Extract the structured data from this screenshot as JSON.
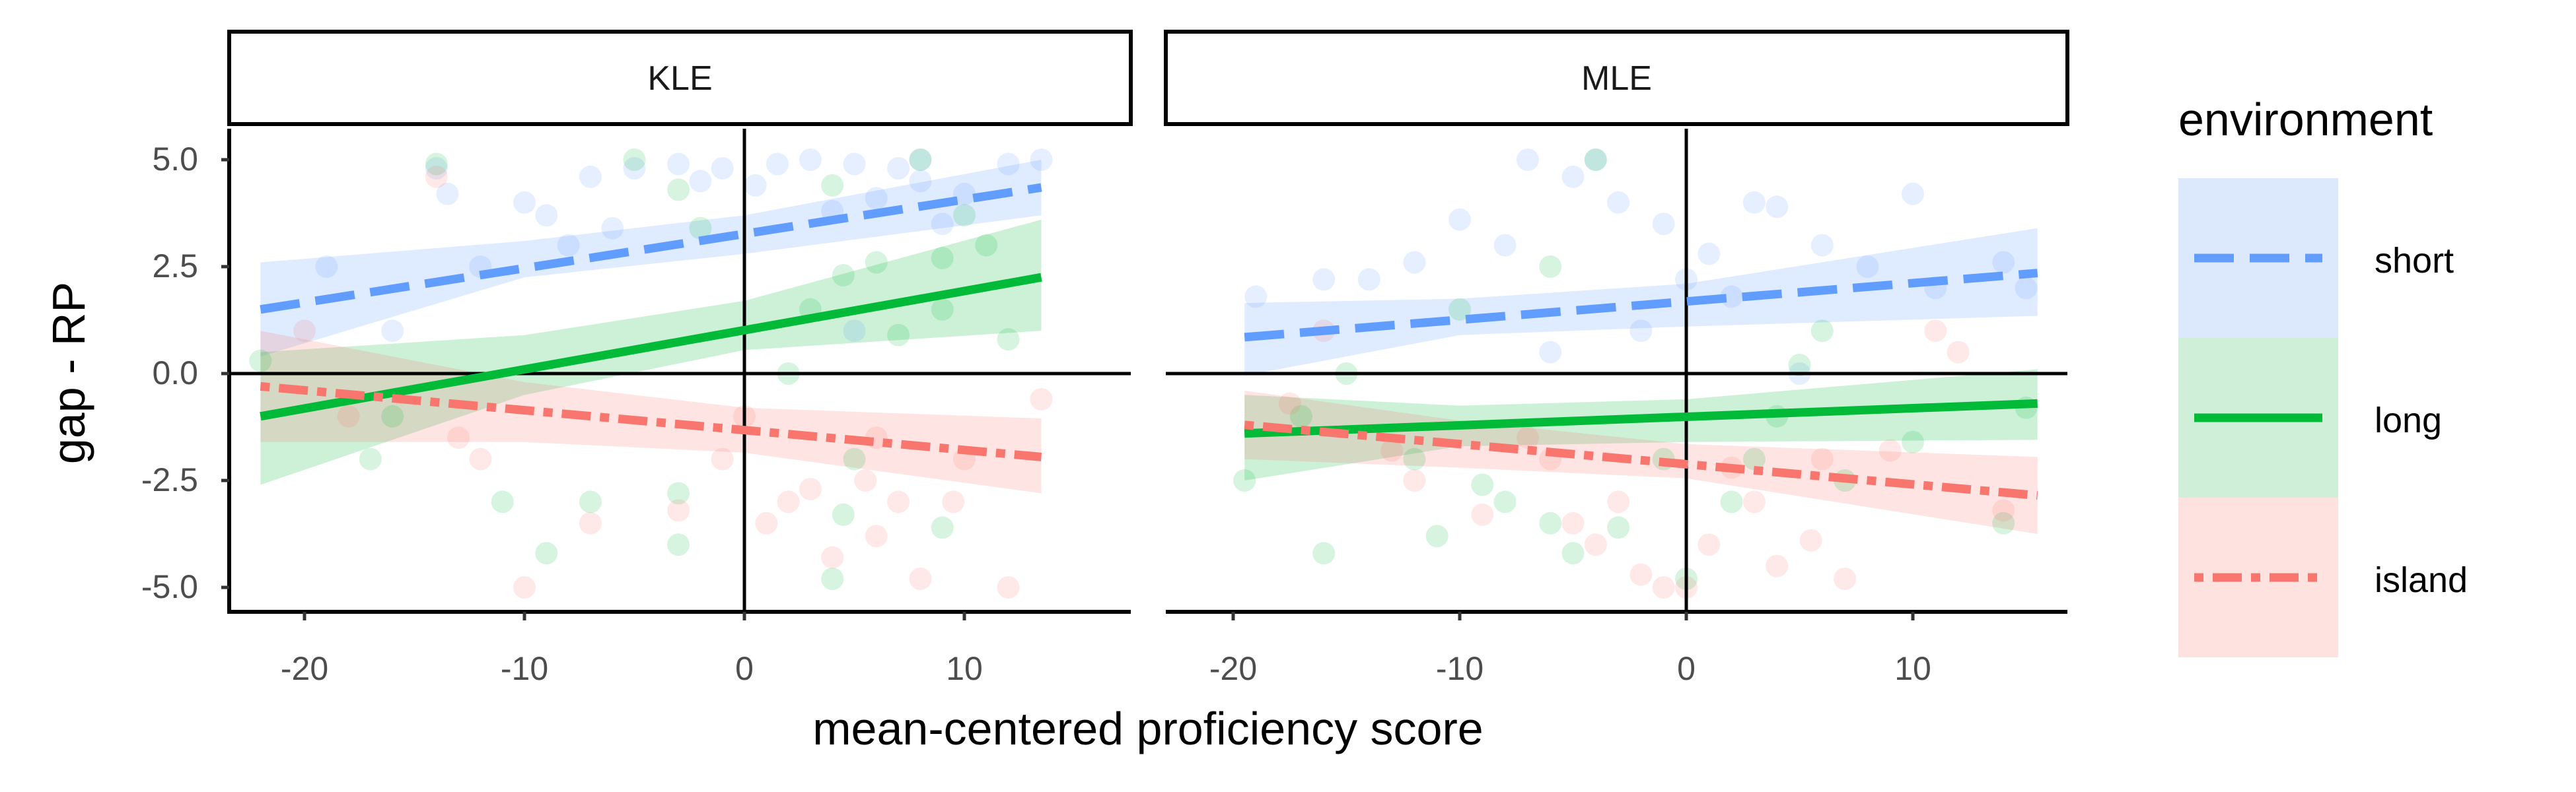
{
  "chart_data": {
    "type": "scatter",
    "xlabel": "mean-centered proficiency score",
    "ylabel": "gap - RP",
    "xlim": [
      -23.5,
      17.5
    ],
    "ylim": [
      -5.5,
      5.75
    ],
    "x_ticks": [
      -20,
      -10,
      0,
      10
    ],
    "y_ticks": [
      5.0,
      2.5,
      0.0,
      -2.5,
      -5.0
    ],
    "x_tick_labels": [
      "-20",
      "-10",
      "0",
      "10"
    ],
    "y_tick_labels": [
      "5.0",
      "2.5",
      "0.0",
      "-2.5",
      "-5.0"
    ],
    "reference_lines": {
      "x": 0,
      "y": 0
    },
    "grid": false,
    "legend": {
      "title": "environment",
      "position": "right",
      "entries": [
        {
          "label": "short",
          "color": "#619CFF",
          "fill": "#dce8fb",
          "linetype": "longdash"
        },
        {
          "label": "long",
          "color": "#00BA38",
          "fill": "#d0efd8",
          "linetype": "solid"
        },
        {
          "label": "island",
          "color": "#F8766D",
          "fill": "#fde2df",
          "linetype": "dotdash"
        }
      ]
    },
    "panels": [
      {
        "label": "KLE",
        "series": [
          {
            "name": "short",
            "line": {
              "x": [
                -22,
                13.5
              ],
              "y": [
                1.5,
                4.35
              ]
            },
            "band": {
              "x": [
                -22,
                -10,
                0,
                13.5
              ],
              "lower": [
                0.4,
                2.25,
                2.8,
                3.7
              ],
              "upper": [
                2.6,
                3.1,
                3.7,
                5.0
              ]
            }
          },
          {
            "name": "long",
            "line": {
              "x": [
                -22,
                13.5
              ],
              "y": [
                -1.0,
                2.25
              ]
            },
            "band": {
              "x": [
                -22,
                -10,
                0,
                13.5
              ],
              "lower": [
                -2.6,
                -0.5,
                0.55,
                1.0
              ],
              "upper": [
                0.5,
                0.9,
                1.7,
                3.6
              ]
            }
          },
          {
            "name": "island",
            "line": {
              "x": [
                -22,
                13.5
              ],
              "y": [
                -0.3,
                -1.95
              ]
            },
            "band": {
              "x": [
                -22,
                -10,
                0,
                13.5
              ],
              "lower": [
                -1.6,
                -1.6,
                -1.85,
                -2.8
              ],
              "upper": [
                1.0,
                -0.2,
                -0.8,
                -1.05
              ]
            }
          }
        ],
        "points": {
          "short": [
            [
              -14,
              4.8
            ],
            [
              -13.5,
              4.2
            ],
            [
              -10,
              4.0
            ],
            [
              -9,
              3.7
            ],
            [
              -7,
              4.6
            ],
            [
              -5,
              4.8
            ],
            [
              -3,
              4.9
            ],
            [
              -2,
              4.5
            ],
            [
              -1,
              4.8
            ],
            [
              0.5,
              4.4
            ],
            [
              3,
              5.0
            ],
            [
              5,
              4.9
            ],
            [
              6,
              4.1
            ],
            [
              7,
              4.8
            ],
            [
              8,
              5.0
            ],
            [
              10,
              4.2
            ],
            [
              12,
              4.9
            ],
            [
              13.5,
              5.0
            ],
            [
              -12,
              2.5
            ],
            [
              -8,
              3.0
            ],
            [
              4,
              3.8
            ],
            [
              9,
              3.5
            ],
            [
              5,
              1.0
            ],
            [
              -16,
              1.0
            ],
            [
              -19,
              2.5
            ],
            [
              -6,
              3.4
            ],
            [
              8,
              4.5
            ],
            [
              1.5,
              4.9
            ]
          ],
          "long": [
            [
              -14,
              4.9
            ],
            [
              -5,
              5.0
            ],
            [
              -3,
              4.3
            ],
            [
              4,
              4.4
            ],
            [
              8,
              5.0
            ],
            [
              10,
              3.7
            ],
            [
              11,
              3.0
            ],
            [
              9,
              2.7
            ],
            [
              6,
              2.6
            ],
            [
              4.5,
              2.3
            ],
            [
              3,
              1.5
            ],
            [
              2,
              0.0
            ],
            [
              -2,
              3.4
            ],
            [
              -3,
              -2.8
            ],
            [
              -3,
              -4.0
            ],
            [
              -7,
              -3.0
            ],
            [
              -9,
              -4.2
            ],
            [
              -11,
              -3.0
            ],
            [
              -17,
              -2.0
            ],
            [
              4,
              -4.8
            ],
            [
              4.5,
              -3.3
            ],
            [
              5,
              -2.0
            ],
            [
              9,
              -3.6
            ],
            [
              -22,
              0.3
            ],
            [
              -16,
              -1.0
            ],
            [
              7,
              0.9
            ],
            [
              9,
              1.5
            ],
            [
              12,
              0.8
            ]
          ],
          "island": [
            [
              -14,
              4.6
            ],
            [
              -20,
              1.0
            ],
            [
              -18,
              -1.0
            ],
            [
              -10,
              -5.0
            ],
            [
              -7,
              -3.5
            ],
            [
              -1,
              -2.0
            ],
            [
              1,
              -3.5
            ],
            [
              2,
              -3.0
            ],
            [
              4,
              -4.3
            ],
            [
              6,
              -1.5
            ],
            [
              7,
              -3.0
            ],
            [
              8,
              -4.8
            ],
            [
              10,
              -2.0
            ],
            [
              12,
              -5.0
            ],
            [
              13.5,
              -0.6
            ],
            [
              3,
              -2.7
            ],
            [
              5.5,
              -2.5
            ],
            [
              -3,
              -3.2
            ],
            [
              -13,
              -1.5
            ],
            [
              6,
              -3.8
            ],
            [
              0,
              -1.0
            ],
            [
              -12,
              -2.0
            ],
            [
              9.5,
              -3.0
            ]
          ]
        }
      },
      {
        "label": "MLE",
        "series": [
          {
            "name": "short",
            "line": {
              "x": [
                -19.5,
                15.5
              ],
              "y": [
                0.85,
                2.35
              ]
            },
            "band": {
              "x": [
                -19.5,
                -10,
                0,
                15.5
              ],
              "lower": [
                -0.05,
                0.9,
                1.1,
                1.35
              ],
              "upper": [
                1.65,
                1.75,
                2.1,
                3.4
              ]
            }
          },
          {
            "name": "long",
            "line": {
              "x": [
                -19.5,
                15.5
              ],
              "y": [
                -1.4,
                -0.7
              ]
            },
            "band": {
              "x": [
                -19.5,
                -10,
                0,
                15.5
              ],
              "lower": [
                -2.5,
                -1.7,
                -1.6,
                -1.55
              ],
              "upper": [
                -0.5,
                -0.75,
                -0.6,
                0.1
              ]
            }
          },
          {
            "name": "island",
            "line": {
              "x": [
                -19.5,
                15.5
              ],
              "y": [
                -1.2,
                -2.85
              ]
            },
            "band": {
              "x": [
                -19.5,
                -10,
                0,
                15.5
              ],
              "lower": [
                -2.0,
                -2.2,
                -2.45,
                -3.75
              ],
              "upper": [
                -0.4,
                -1.1,
                -1.65,
                -1.95
              ]
            }
          }
        ],
        "points": {
          "short": [
            [
              -7,
              5.0
            ],
            [
              -5,
              4.6
            ],
            [
              -4,
              5.0
            ],
            [
              -10,
              3.6
            ],
            [
              -12,
              2.6
            ],
            [
              -14,
              2.2
            ],
            [
              -16,
              2.2
            ],
            [
              -19,
              1.8
            ],
            [
              -8,
              3.0
            ],
            [
              -3,
              4.0
            ],
            [
              -1,
              3.5
            ],
            [
              1,
              2.8
            ],
            [
              3,
              4.0
            ],
            [
              4,
              3.9
            ],
            [
              6,
              3.0
            ],
            [
              8,
              2.5
            ],
            [
              10,
              4.2
            ],
            [
              11,
              2.0
            ],
            [
              14,
              2.6
            ],
            [
              15,
              2.0
            ],
            [
              2,
              1.8
            ],
            [
              -2,
              1.0
            ],
            [
              5,
              0.0
            ],
            [
              -6,
              0.5
            ],
            [
              0,
              2.2
            ]
          ],
          "long": [
            [
              -4,
              5.0
            ],
            [
              -6,
              2.5
            ],
            [
              -10,
              1.5
            ],
            [
              -15,
              0.0
            ],
            [
              -17,
              -1.0
            ],
            [
              -19.5,
              -2.5
            ],
            [
              -16,
              -4.2
            ],
            [
              -12,
              -2.0
            ],
            [
              -9,
              -2.6
            ],
            [
              -8,
              -3.0
            ],
            [
              -6,
              -3.5
            ],
            [
              -5,
              -4.2
            ],
            [
              -3,
              -3.6
            ],
            [
              -1,
              -2.0
            ],
            [
              0,
              -4.8
            ],
            [
              2,
              -3.0
            ],
            [
              3,
              -2.0
            ],
            [
              4,
              -1.0
            ],
            [
              5,
              0.2
            ],
            [
              6,
              1.0
            ],
            [
              10,
              -1.6
            ],
            [
              14,
              -3.5
            ],
            [
              15,
              -0.8
            ],
            [
              -11,
              -3.8
            ],
            [
              7,
              -2.5
            ]
          ],
          "island": [
            [
              -16,
              1.0
            ],
            [
              -17.5,
              -0.7
            ],
            [
              -12,
              -2.5
            ],
            [
              -9,
              -3.3
            ],
            [
              -7,
              -1.5
            ],
            [
              -6,
              -2.0
            ],
            [
              -4,
              -4.0
            ],
            [
              -3,
              -3.0
            ],
            [
              -2,
              -4.7
            ],
            [
              -1,
              -5.0
            ],
            [
              0,
              -5.0
            ],
            [
              1,
              -4.0
            ],
            [
              2,
              -2.2
            ],
            [
              3,
              -3.0
            ],
            [
              4,
              -4.5
            ],
            [
              6,
              -2.0
            ],
            [
              7,
              -4.8
            ],
            [
              9,
              -1.8
            ],
            [
              11,
              1.0
            ],
            [
              12,
              0.5
            ],
            [
              14,
              -3.2
            ],
            [
              -13,
              -1.8
            ],
            [
              -5,
              -3.5
            ],
            [
              5.5,
              -3.9
            ]
          ]
        }
      }
    ]
  }
}
